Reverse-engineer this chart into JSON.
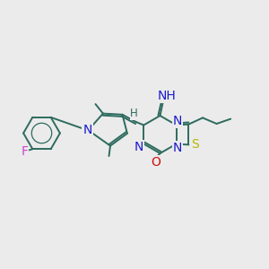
{
  "background_color": "#ebebeb",
  "bond_color": "#2d6b5e",
  "figsize": [
    3.0,
    3.0
  ],
  "dpi": 100,
  "lw": 1.4,
  "atom_colors": {
    "N": "#1a1acc",
    "S": "#b8b800",
    "O": "#cc1111",
    "F": "#cc44cc",
    "H": "#2d6b5e",
    "C": "#2d6b5e"
  }
}
